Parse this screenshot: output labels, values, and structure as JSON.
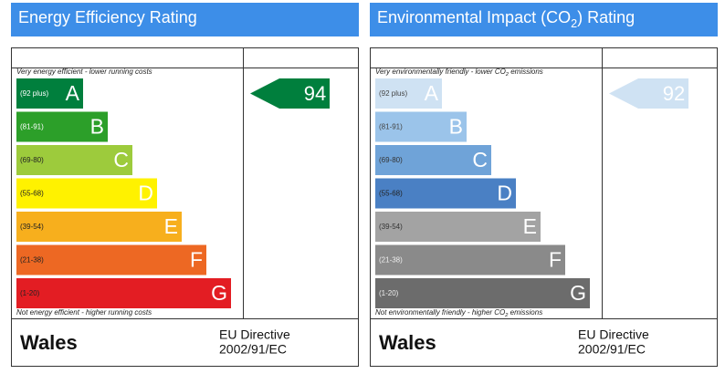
{
  "panels": [
    {
      "title": [
        {
          "text": "Energy Efficiency Rating"
        }
      ],
      "top_note": [
        {
          "text": "Very energy efficient - lower running costs"
        }
      ],
      "bottom_note": [
        {
          "text": "Not energy efficient - higher running costs"
        }
      ],
      "bands": [
        {
          "range": "(92 plus)",
          "letter": "A",
          "color": "#007f3d",
          "text_color": "#ffffff"
        },
        {
          "range": "(81-91)",
          "letter": "B",
          "color": "#2c9f29",
          "text_color": "#ffffff"
        },
        {
          "range": "(69-80)",
          "letter": "C",
          "color": "#9dcb3c",
          "text_color": "#222222"
        },
        {
          "range": "(55-68)",
          "letter": "D",
          "color": "#fff200",
          "text_color": "#222222"
        },
        {
          "range": "(39-54)",
          "letter": "E",
          "color": "#f7af1d",
          "text_color": "#222222"
        },
        {
          "range": "(21-38)",
          "letter": "F",
          "color": "#ed6823",
          "text_color": "#222222"
        },
        {
          "range": "(1-20)",
          "letter": "G",
          "color": "#e31d23",
          "text_color": "#222222"
        }
      ],
      "rating": 94,
      "country": "Wales",
      "directive": [
        "EU Directive",
        "2002/91/EC"
      ]
    },
    {
      "title": [
        {
          "text": "Environmental Impact (CO"
        },
        {
          "text": "2",
          "sub": true
        },
        {
          "text": ") Rating"
        }
      ],
      "top_note": [
        {
          "text": "Very environmentally friendly - lower CO"
        },
        {
          "text": "2",
          "sub": true
        },
        {
          "text": " emissions"
        }
      ],
      "bottom_note": [
        {
          "text": "Not environmentally friendly - higher CO"
        },
        {
          "text": "2",
          "sub": true
        },
        {
          "text": " emissions"
        }
      ],
      "bands": [
        {
          "range": "(92 plus)",
          "letter": "A",
          "color": "#cfe2f3",
          "text_color": "#444444"
        },
        {
          "range": "(81-91)",
          "letter": "B",
          "color": "#9bc4ea",
          "text_color": "#444444"
        },
        {
          "range": "(69-80)",
          "letter": "C",
          "color": "#6fa3d8",
          "text_color": "#333333"
        },
        {
          "range": "(55-68)",
          "letter": "D",
          "color": "#4a80c4",
          "text_color": "#222222"
        },
        {
          "range": "(39-54)",
          "letter": "E",
          "color": "#a3a3a3",
          "text_color": "#333333"
        },
        {
          "range": "(21-38)",
          "letter": "F",
          "color": "#8a8a8a",
          "text_color": "#eeeeee"
        },
        {
          "range": "(1-20)",
          "letter": "G",
          "color": "#6c6c6c",
          "text_color": "#eeeeee"
        }
      ],
      "rating": 92,
      "country": "Wales",
      "directive": [
        "EU Directive",
        "2002/91/EC"
      ]
    }
  ]
}
